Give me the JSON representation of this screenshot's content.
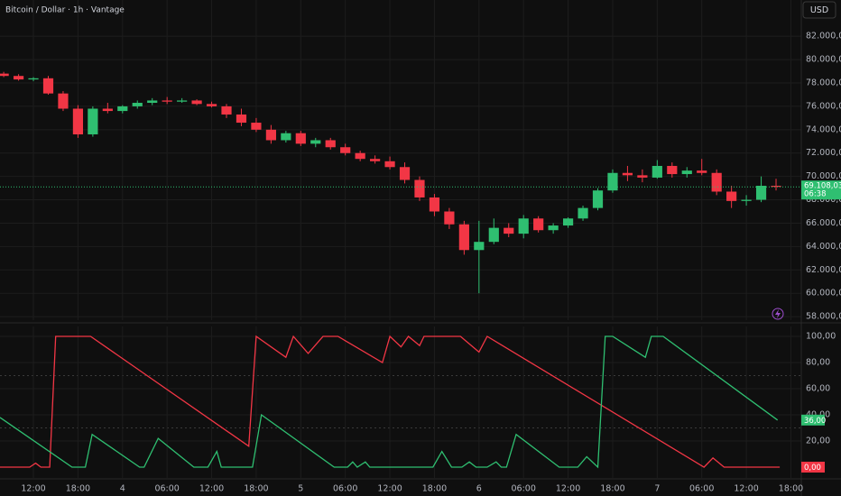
{
  "chart_data": [
    {
      "type": "candlestick",
      "title": "Bitcoin / Dollar · 1h · Vantage",
      "currency": "USD",
      "up_color": "#2fbf71",
      "down_color": "#f23645",
      "x": [
        -4,
        -2,
        0,
        2,
        4,
        6,
        8,
        10,
        12,
        14,
        16,
        18,
        20,
        22,
        24,
        26,
        28,
        30,
        32,
        34,
        36,
        38,
        40,
        42,
        44,
        46,
        48,
        50,
        52,
        54,
        56,
        58,
        60,
        62,
        64,
        66,
        68,
        70,
        72,
        74,
        76,
        78,
        80,
        82,
        84,
        86,
        88,
        90,
        92,
        94,
        96,
        98,
        100
      ],
      "open": [
        78800,
        78600,
        78300,
        78400,
        77100,
        75800,
        73600,
        75800,
        75600,
        76000,
        76300,
        76500,
        76400,
        76500,
        76200,
        76000,
        75300,
        74600,
        74000,
        73100,
        73700,
        72800,
        73100,
        72500,
        72000,
        71500,
        71300,
        70800,
        69700,
        68200,
        67000,
        65900,
        63700,
        64400,
        65600,
        65100,
        66400,
        65400,
        65800,
        66400,
        67300,
        68800,
        70300,
        70100,
        69900,
        70900,
        70200,
        70500,
        70300,
        68700,
        67900,
        68000,
        69200
      ],
      "high": [
        78950,
        78750,
        78500,
        78600,
        77300,
        76100,
        76000,
        76300,
        76100,
        76500,
        76700,
        76800,
        76700,
        76600,
        76400,
        76200,
        75800,
        75000,
        74400,
        73900,
        73900,
        73300,
        73300,
        72800,
        72200,
        71800,
        71700,
        71200,
        70000,
        68500,
        67300,
        66200,
        66200,
        66400,
        66000,
        66700,
        66600,
        66000,
        66500,
        67500,
        69000,
        70600,
        70900,
        70600,
        71400,
        71200,
        70800,
        71500,
        70600,
        69200,
        68400,
        70000,
        69800
      ],
      "low": [
        78500,
        78200,
        78150,
        77000,
        75600,
        73300,
        73400,
        75400,
        75400,
        75800,
        76100,
        76200,
        76300,
        76100,
        75900,
        75000,
        74300,
        73800,
        72800,
        72900,
        72600,
        72500,
        72300,
        71800,
        71300,
        71100,
        70600,
        69400,
        67900,
        66600,
        65500,
        63300,
        60000,
        64200,
        64800,
        64700,
        65200,
        65100,
        65600,
        66200,
        67100,
        68600,
        69600,
        69500,
        69800,
        69900,
        69900,
        70100,
        68400,
        67300,
        67500,
        67800,
        68800
      ],
      "close": [
        78600,
        78300,
        78400,
        77100,
        75800,
        73600,
        75800,
        75600,
        76000,
        76300,
        76500,
        76400,
        76500,
        76200,
        76000,
        75300,
        74600,
        74000,
        73100,
        73700,
        72800,
        73100,
        72500,
        72000,
        71500,
        71300,
        70800,
        69700,
        68200,
        67000,
        65900,
        63700,
        64400,
        65600,
        65100,
        66400,
        65400,
        65800,
        66400,
        67300,
        68800,
        70300,
        70100,
        69900,
        70900,
        70200,
        70500,
        70300,
        68700,
        67900,
        68000,
        69200,
        69108.03
      ],
      "last_price": {
        "value": 69108.03,
        "label": "69.108,03"
      },
      "countdown": "06:38",
      "xlim": [
        -4.5,
        103.4
      ],
      "ylim": [
        57700,
        85100
      ],
      "yticks": [
        {
          "value": 82000,
          "label": "82.000,00"
        },
        {
          "value": 80000,
          "label": "80.000,00"
        },
        {
          "value": 78000,
          "label": "78.000,00"
        },
        {
          "value": 76000,
          "label": "76.000,00"
        },
        {
          "value": 74000,
          "label": "74.000,00"
        },
        {
          "value": 72000,
          "label": "72.000,00"
        },
        {
          "value": 70000,
          "label": "70.000,00"
        },
        {
          "value": 68000,
          "label": "68.000,00"
        },
        {
          "value": 66000,
          "label": "66.000,00"
        },
        {
          "value": 64000,
          "label": "64.000,00"
        },
        {
          "value": 62000,
          "label": "62.000,00"
        },
        {
          "value": 60000,
          "label": "60.000,00"
        },
        {
          "value": 58000,
          "label": "58.000,00"
        }
      ],
      "grid": true
    },
    {
      "type": "line",
      "series": [
        {
          "color": "#f23645",
          "x": [
            -4.5,
            -0.5,
            0.3,
            1,
            2.2,
            3,
            7.7,
            29,
            30,
            34,
            35,
            37,
            39,
            41,
            47,
            48,
            49.5,
            50.5,
            52,
            52.6,
            57.5,
            60,
            61.1,
            90.3,
            91.5,
            93,
            100.5
          ],
          "values": [
            0,
            0,
            3,
            0,
            0,
            100,
            100,
            16,
            100,
            84,
            100,
            87,
            100,
            100,
            80,
            100,
            92,
            100,
            93,
            100,
            100,
            88,
            100,
            0,
            7,
            0,
            0
          ],
          "end_label": {
            "value": 0,
            "label": "0,00"
          }
        },
        {
          "color": "#2fbf71",
          "x": [
            -4.5,
            5.2,
            7,
            7.9,
            14.3,
            14.9,
            16.8,
            21.6,
            23.5,
            24.7,
            25.3,
            29.5,
            30.7,
            40.5,
            42.3,
            43,
            43.6,
            44.7,
            45.3,
            53.8,
            55,
            56.3,
            57.7,
            58.7,
            59.6,
            61.1,
            62.3,
            63,
            63.7,
            65,
            70.8,
            73.3,
            74.5,
            76,
            77,
            78,
            82.4,
            83.2,
            84.8,
            100.2
          ],
          "values": [
            38,
            0,
            0,
            25,
            0,
            0,
            22,
            0,
            0,
            12,
            0,
            0,
            40,
            0,
            0,
            4,
            0,
            4,
            0,
            0,
            12,
            0,
            0,
            4,
            0,
            0,
            4,
            0,
            0,
            25,
            0,
            0,
            8,
            0,
            100,
            100,
            84,
            100,
            100,
            36
          ],
          "end_label": {
            "value": 36,
            "label": "36,00"
          }
        }
      ],
      "bands": [
        70,
        30
      ],
      "xlim": [
        -4.5,
        103.4
      ],
      "ylim": [
        -8.3,
        107.6
      ],
      "yticks": [
        {
          "value": 100,
          "label": "100,00"
        },
        {
          "value": 80,
          "label": "80,00"
        },
        {
          "value": 60,
          "label": "60,00"
        },
        {
          "value": 40,
          "label": "40,00"
        },
        {
          "value": 20,
          "label": "20,00"
        }
      ],
      "xticks": [
        {
          "value": 0,
          "label": "12:00"
        },
        {
          "value": 6,
          "label": "18:00"
        },
        {
          "value": 12,
          "label": "4"
        },
        {
          "value": 18,
          "label": "06:00"
        },
        {
          "value": 24,
          "label": "12:00"
        },
        {
          "value": 30,
          "label": "18:00"
        },
        {
          "value": 36,
          "label": "5"
        },
        {
          "value": 42,
          "label": "06:00"
        },
        {
          "value": 48,
          "label": "12:00"
        },
        {
          "value": 54,
          "label": "18:00"
        },
        {
          "value": 60,
          "label": "6"
        },
        {
          "value": 66,
          "label": "06:00"
        },
        {
          "value": 72,
          "label": "12:00"
        },
        {
          "value": 78,
          "label": "18:00"
        },
        {
          "value": 84,
          "label": "7"
        },
        {
          "value": 90,
          "label": "06:00"
        },
        {
          "value": 96,
          "label": "12:00"
        },
        {
          "value": 102,
          "label": "18:00"
        }
      ],
      "grid": true
    }
  ]
}
